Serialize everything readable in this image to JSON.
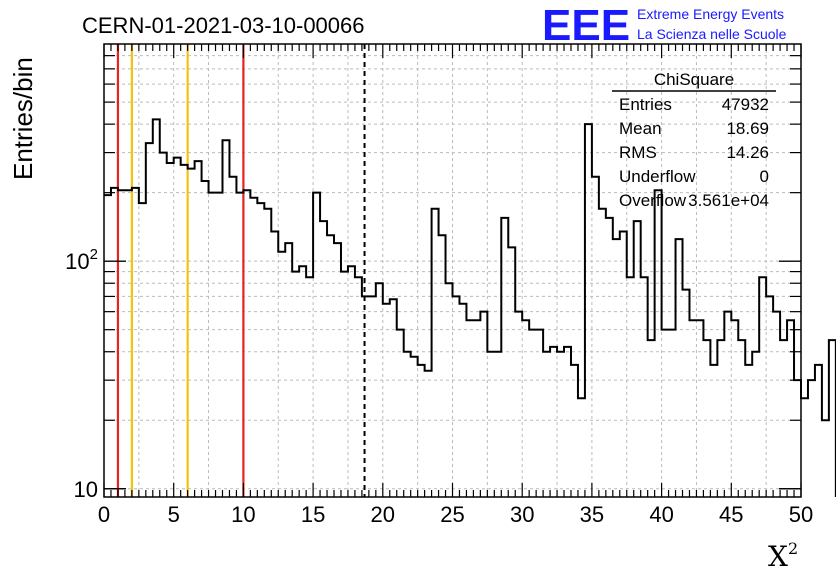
{
  "chart_data": {
    "type": "bar",
    "title": "CERN-01-2021-03-10-00066",
    "ylabel": "Entries/bin",
    "xlabel": "X",
    "xlabel_sup": "2",
    "xlim": [
      0,
      50
    ],
    "ylim": [
      9.2,
      900
    ],
    "yscale": "log",
    "grid": true,
    "bin_width": 0.5,
    "x_ticks": [
      "0",
      "5",
      "10",
      "15",
      "20",
      "25",
      "30",
      "35",
      "40",
      "45",
      "50"
    ],
    "y_ticks": [
      {
        "value": 10,
        "label": "10"
      },
      {
        "value": 100,
        "label": "10",
        "sup": "2"
      }
    ],
    "values": [
      195,
      210,
      205,
      205,
      210,
      180,
      330,
      420,
      300,
      270,
      285,
      265,
      255,
      275,
      225,
      200,
      200,
      340,
      235,
      200,
      205,
      190,
      180,
      170,
      135,
      110,
      120,
      90,
      95,
      85,
      200,
      150,
      130,
      120,
      90,
      95,
      85,
      70,
      70,
      80,
      65,
      68,
      50,
      40,
      38,
      35,
      33,
      170,
      130,
      80,
      70,
      65,
      55,
      55,
      60,
      40,
      40,
      155,
      115,
      60,
      55,
      50,
      50,
      40,
      42,
      40,
      42,
      35,
      25,
      400,
      235,
      170,
      155,
      125,
      135,
      85,
      150,
      85,
      45,
      205,
      50,
      50,
      125,
      75,
      55,
      55,
      45,
      35,
      45,
      60,
      55,
      45,
      35,
      40,
      85,
      70,
      60,
      45,
      55,
      30,
      25,
      30,
      35,
      20,
      45
    ],
    "reference_lines": [
      {
        "x": 1.0,
        "color": "#e8231e",
        "style": "solid"
      },
      {
        "x": 2.0,
        "color": "#f4c20d",
        "style": "solid"
      },
      {
        "x": 6.0,
        "color": "#f4c20d",
        "style": "solid"
      },
      {
        "x": 10.0,
        "color": "#e8231e",
        "style": "solid"
      },
      {
        "x": 18.69,
        "color": "#000000",
        "style": "dashed"
      }
    ],
    "stats_box": {
      "title": "ChiSquare",
      "rows": [
        {
          "label": "Entries",
          "value": "47932"
        },
        {
          "label": "Mean",
          "value": "18.69"
        },
        {
          "label": "RMS",
          "value": "14.26"
        },
        {
          "label": "Underflow",
          "value": "0"
        },
        {
          "label": "Overflow",
          "value": "3.561e+04"
        }
      ]
    },
    "logo": {
      "mark": "EEE",
      "line1": "Extreme Energy Events",
      "line2": "La Scienza nelle Scuole"
    },
    "colors": {
      "logo": "#1a1aff",
      "histogram": "#000000",
      "grid": "#bbbbbb"
    }
  }
}
